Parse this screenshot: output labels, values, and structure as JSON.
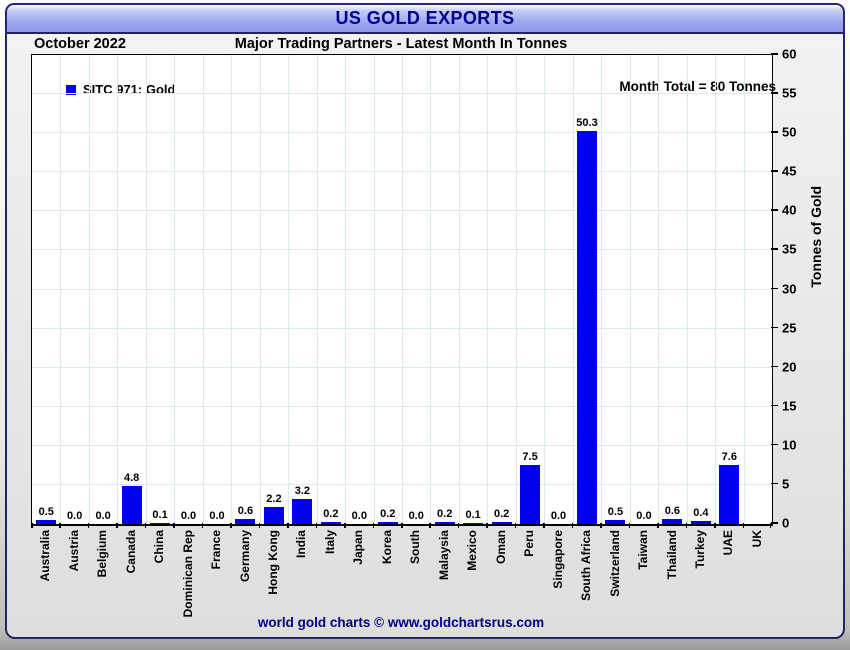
{
  "window": {
    "title": "US GOLD EXPORTS"
  },
  "header": {
    "period": "October 2022",
    "subtitle": "Major Trading Partners - Latest Month In Tonnes"
  },
  "legend": {
    "label": "SITC 971: Gold"
  },
  "annotations": {
    "month_total": "Month Total = 80 Tonnes"
  },
  "footer": {
    "credit": "world gold charts © www.goldchartsrus.com"
  },
  "colors": {
    "bar": "#0000ee",
    "grid": "#dceaf2",
    "title_text": "#00008c",
    "footer_text": "#00008c",
    "titlebar_fill": "#98a3ee",
    "plot_background": "#ffffff"
  },
  "chart_data": {
    "type": "bar",
    "title": "US GOLD EXPORTS",
    "subtitle": "Major Trading Partners - Latest Month In Tonnes",
    "series_name": "SITC 971: Gold",
    "xlabel": "",
    "ylabel": "Tonnes of Gold",
    "ylim": [
      0,
      60
    ],
    "y_ticks": [
      0,
      5,
      10,
      15,
      20,
      25,
      30,
      35,
      40,
      45,
      50,
      55,
      60
    ],
    "grid": true,
    "legend_position": "top-left",
    "bar_color": "#0000ee",
    "categories": [
      "Australia",
      "Austria",
      "Belgium",
      "Canada",
      "China",
      "Dominican Rep",
      "France",
      "Germany",
      "Hong Kong",
      "India",
      "Italy",
      "Japan",
      "Korea",
      "South",
      "Malaysia",
      "Mexico",
      "Oman",
      "Peru",
      "Singapore",
      "South Africa",
      "Switzerland",
      "Taiwan",
      "Thailand",
      "Turkey",
      "UAE",
      "UK"
    ],
    "values": [
      0.5,
      0.0,
      0.0,
      4.8,
      0.1,
      0.0,
      0.0,
      0.6,
      2.2,
      3.2,
      0.2,
      0.0,
      0.2,
      0.0,
      0.2,
      0.1,
      0.2,
      7.5,
      0.0,
      50.3,
      0.5,
      0.0,
      0.6,
      0.4,
      7.6,
      0.0
    ],
    "bar_labels": [
      "0.5",
      "0.0",
      "0.0",
      "4.8",
      "0.1",
      "0.0",
      "0.0",
      "0.6",
      "2.2",
      "3.2",
      "0.2",
      "0.0",
      "0.2",
      "0.0",
      "0.2",
      "0.1",
      "0.2",
      "7.5",
      "0.0",
      "50.3",
      "0.5",
      "0.0",
      "0.6",
      "0.4",
      "7.6",
      ""
    ]
  }
}
